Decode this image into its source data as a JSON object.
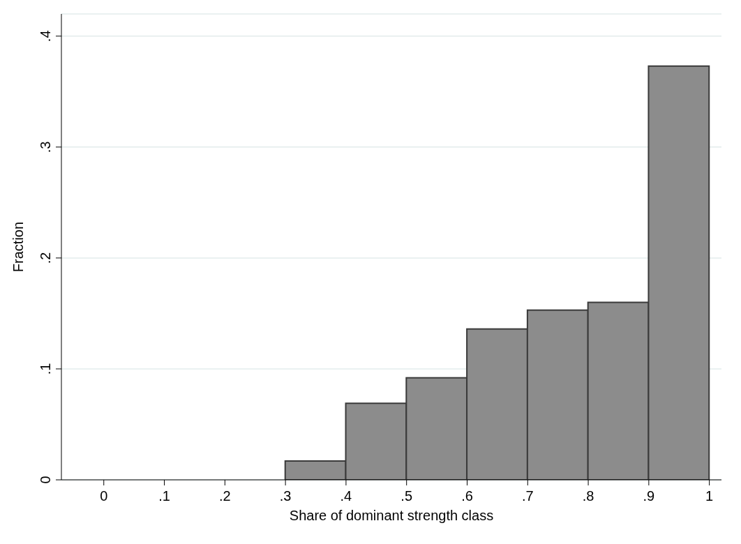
{
  "chart_data": {
    "type": "histogram",
    "xlabel": "Share of dominant strength class",
    "ylabel": "Fraction",
    "bins": [
      0,
      0.1,
      0.2,
      0.3,
      0.4,
      0.5,
      0.6,
      0.7,
      0.8,
      0.9,
      1
    ],
    "values": [
      0,
      0,
      0,
      0.017,
      0.069,
      0.092,
      0.136,
      0.153,
      0.16,
      0.373
    ],
    "color": "#8c8c8c",
    "xlim": [
      -0.07,
      1.02
    ],
    "ylim": [
      0,
      0.42
    ],
    "xticks": [
      0,
      {
        "value": 0.1,
        "label": ".1"
      },
      {
        "value": 0.2,
        "label": ".2"
      },
      {
        "value": 0.3,
        "label": ".3"
      },
      {
        "value": 0.4,
        "label": ".4"
      },
      {
        "value": 0.5,
        "label": ".5"
      },
      {
        "value": 0.6,
        "label": ".6"
      },
      {
        "value": 0.7,
        "label": ".7"
      },
      {
        "value": 0.8,
        "label": ".8"
      },
      {
        "value": 0.9,
        "label": ".9"
      },
      1
    ],
    "yticks": [
      0,
      {
        "value": 0.1,
        "label": ".1"
      },
      {
        "value": 0.2,
        "label": ".2"
      },
      {
        "value": 0.3,
        "label": ".3"
      },
      {
        "value": 0.4,
        "label": ".4"
      }
    ],
    "grid": "y"
  }
}
